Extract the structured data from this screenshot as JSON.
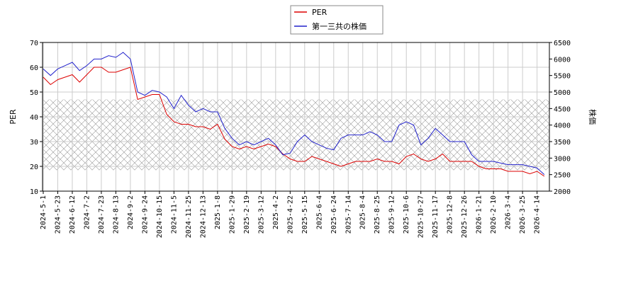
{
  "chart_data": {
    "type": "line",
    "categories": [
      "2024-5-1",
      null,
      "2024-5-23",
      null,
      "2024-6-12",
      null,
      "2024-7-2",
      null,
      "2024-7-23",
      null,
      "2024-8-13",
      null,
      "2024-9-2",
      null,
      "2024-9-24",
      null,
      "2024-10-15",
      null,
      "2024-11-5",
      null,
      "2024-11-25",
      null,
      "2024-12-13",
      null,
      "2025-1-8",
      null,
      "2025-1-29",
      null,
      "2025-2-19",
      null,
      "2025-3-12",
      null,
      "2025-4-2",
      null,
      "2025-4-22",
      null,
      "2025-5-15",
      null,
      "2025-6-4",
      null,
      "2025-6-24",
      null,
      "2025-7-14",
      null,
      "2025-8-4",
      null,
      "2025-8-25",
      null,
      "2025-9-12",
      null,
      "2025-10-6",
      null,
      "2025-10-27",
      null,
      "2025-11-17",
      null,
      "2025-12-8",
      null,
      "2025-12-26",
      null,
      "2026-1-21",
      null,
      "2026-2-10",
      null,
      "2026-3-4",
      null,
      "2026-3-25",
      null,
      "2026-4-14",
      null
    ],
    "series": [
      {
        "name": "PER",
        "color": "#dd0000",
        "values": [
          56,
          53,
          55,
          56,
          57,
          54,
          57,
          60,
          60,
          58,
          58,
          59,
          60,
          47,
          48,
          49,
          49,
          41,
          38,
          37,
          37,
          36,
          36,
          35,
          37,
          31,
          28,
          27,
          28,
          27,
          28,
          29,
          28,
          25,
          23,
          22,
          22,
          24,
          23,
          22,
          21,
          20,
          21,
          22,
          22,
          22,
          23,
          22,
          22,
          21,
          24,
          25,
          23,
          22,
          23,
          25,
          22,
          22,
          22,
          22,
          20,
          19,
          19,
          19,
          18,
          18,
          18,
          17,
          18,
          16
        ]
      },
      {
        "name": "第一三共の株価",
        "color": "#2222cc",
        "axis": "y2",
        "values": [
          5700,
          5500,
          5700,
          5800,
          5900,
          5650,
          5800,
          6000,
          6000,
          6100,
          6050,
          6200,
          6000,
          5000,
          4900,
          5050,
          5000,
          4850,
          4500,
          4900,
          4600,
          4400,
          4500,
          4400,
          4400,
          3900,
          3600,
          3400,
          3500,
          3400,
          3500,
          3600,
          3400,
          3100,
          3150,
          3500,
          3700,
          3500,
          3400,
          3300,
          3250,
          3600,
          3700,
          3700,
          3700,
          3800,
          3700,
          3500,
          3500,
          4000,
          4100,
          4000,
          3400,
          3600,
          3900,
          3700,
          3500,
          3500,
          3500,
          3100,
          2900,
          2900,
          2900,
          2850,
          2800,
          2800,
          2800,
          2750,
          2700,
          2500
        ]
      }
    ],
    "band": [
      18.5,
      47
    ],
    "ylabel": "PER",
    "y2label": "株価",
    "ylim": [
      10,
      70
    ],
    "yticks": [
      10,
      20,
      30,
      40,
      50,
      60,
      70
    ],
    "y2lim": [
      2000,
      6500
    ],
    "y2ticks": [
      2000,
      2500,
      3000,
      3500,
      4000,
      4500,
      5000,
      5500,
      6000,
      6500
    ],
    "grid": true
  }
}
